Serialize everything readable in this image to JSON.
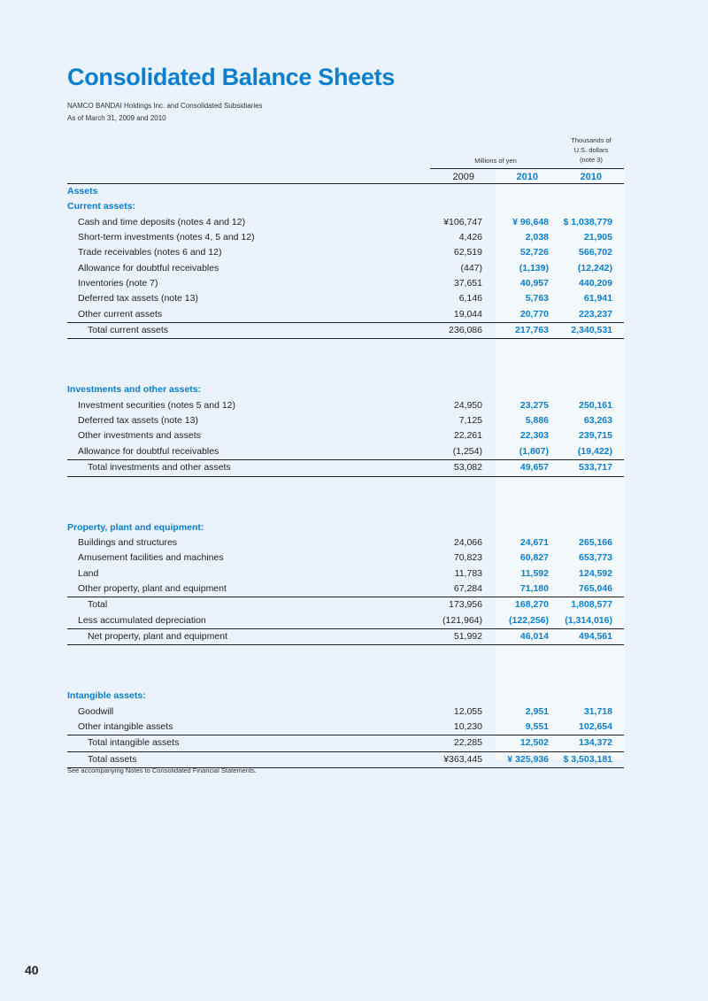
{
  "title": "Consolidated Balance Sheets",
  "subtitle1": "NAMCO BANDAI Holdings Inc. and Consolidated Subsidiaries",
  "subtitle2": "As of March 31, 2009 and 2010",
  "header": {
    "yen_label": "Millions of yen",
    "usd_label": [
      "Thousands of",
      "U.S. dollars",
      "(note 3)"
    ],
    "years": [
      "2009",
      "2010",
      "2010"
    ]
  },
  "colors": {
    "accent": "#0a7fcf",
    "background": "#eaf2fb"
  },
  "blocks": [
    [
      {
        "label": "Assets",
        "type": "sec"
      },
      {
        "label": "Current assets:",
        "type": "sec"
      },
      {
        "label": "Cash and time deposits (notes 4 and 12)",
        "indent": 1,
        "values": [
          "¥106,747",
          "¥   96,648",
          "$ 1,038,779"
        ]
      },
      {
        "label": "Short-term investments (notes 4, 5 and 12)",
        "indent": 1,
        "values": [
          "4,426",
          "2,038",
          "21,905"
        ]
      },
      {
        "label": "Trade receivables (notes 6 and 12)",
        "indent": 1,
        "values": [
          "62,519",
          "52,726",
          "566,702"
        ]
      },
      {
        "label": "Allowance for doubtful receivables",
        "indent": 1,
        "values": [
          "(447)",
          "(1,139)",
          "(12,242)"
        ]
      },
      {
        "label": "Inventories (note 7)",
        "indent": 1,
        "values": [
          "37,651",
          "40,957",
          "440,209"
        ]
      },
      {
        "label": "Deferred tax assets (note 13)",
        "indent": 1,
        "values": [
          "6,146",
          "5,763",
          "61,941"
        ]
      },
      {
        "label": "Other current assets",
        "indent": 1,
        "values": [
          "19,044",
          "20,770",
          "223,237"
        ]
      },
      {
        "label": "Total current assets",
        "indent": 2,
        "values": [
          "236,086",
          "217,763",
          "2,340,531"
        ],
        "type": "total"
      }
    ],
    [
      {
        "label": "Investments and other assets:",
        "type": "sec"
      },
      {
        "label": "Investment securities (notes 5 and 12)",
        "indent": 1,
        "values": [
          "24,950",
          "23,275",
          "250,161"
        ]
      },
      {
        "label": "Deferred tax assets (note 13)",
        "indent": 1,
        "values": [
          "7,125",
          "5,886",
          "63,263"
        ]
      },
      {
        "label": "Other investments and assets",
        "indent": 1,
        "values": [
          "22,261",
          "22,303",
          "239,715"
        ]
      },
      {
        "label": "Allowance for doubtful receivables",
        "indent": 1,
        "values": [
          "(1,254)",
          "(1,807)",
          "(19,422)"
        ]
      },
      {
        "label": "Total investments and other assets",
        "indent": 2,
        "values": [
          "53,082",
          "49,657",
          "533,717"
        ],
        "type": "total"
      }
    ],
    [
      {
        "label": "Property, plant and equipment:",
        "type": "sec"
      },
      {
        "label": "Buildings and structures",
        "indent": 1,
        "values": [
          "24,066",
          "24,671",
          "265,166"
        ]
      },
      {
        "label": "Amusement facilities and machines",
        "indent": 1,
        "values": [
          "70,823",
          "60,827",
          "653,773"
        ]
      },
      {
        "label": "Land",
        "indent": 1,
        "values": [
          "11,783",
          "11,592",
          "124,592"
        ]
      },
      {
        "label": "Other property, plant and equipment",
        "indent": 1,
        "values": [
          "67,284",
          "71,180",
          "765,046"
        ]
      },
      {
        "label": "Total",
        "indent": 2,
        "values": [
          "173,956",
          "168,270",
          "1,808,577"
        ],
        "type": "subtotal"
      },
      {
        "label": "Less accumulated depreciation",
        "indent": 1,
        "values": [
          "(121,964)",
          "(122,256)",
          "(1,314,016)"
        ]
      },
      {
        "label": "Net property, plant and equipment",
        "indent": 2,
        "values": [
          "51,992",
          "46,014",
          "494,561"
        ],
        "type": "total"
      }
    ],
    [
      {
        "label": "Intangible assets:",
        "type": "sec"
      },
      {
        "label": "Goodwill",
        "indent": 1,
        "values": [
          "12,055",
          "2,951",
          "31,718"
        ]
      },
      {
        "label": "Other intangible assets",
        "indent": 1,
        "values": [
          "10,230",
          "9,551",
          "102,654"
        ]
      },
      {
        "label": "Total intangible assets",
        "indent": 2,
        "values": [
          "22,285",
          "12,502",
          "134,372"
        ],
        "type": "subtotal"
      },
      {
        "label": "Total assets",
        "indent": 2,
        "values": [
          "¥363,445",
          "¥ 325,936",
          "$ 3,503,181"
        ],
        "type": "total"
      }
    ]
  ],
  "footnote": "See accompanying Notes to Consolidated Financial Statements.",
  "page_number": "40"
}
